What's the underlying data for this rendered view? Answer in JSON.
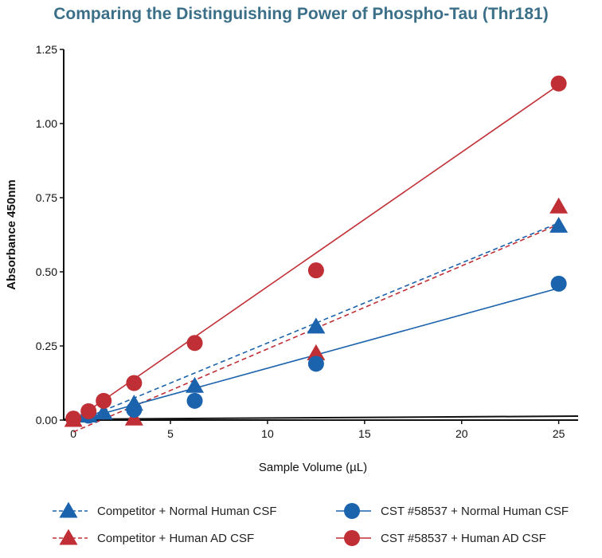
{
  "chart_data": {
    "type": "scatter",
    "title": "Comparing the Distinguishing Power of Phospho-Tau (Thr181)",
    "xlabel": "Sample Volume (µL)",
    "ylabel": "Absorbance 450nm",
    "xlim": [
      -0.5,
      26
    ],
    "ylim": [
      0,
      1.25
    ],
    "xticks": [
      "0",
      "5",
      "10",
      "15",
      "20",
      "25"
    ],
    "yticks": [
      "0.00",
      "0.25",
      "0.50",
      "0.75",
      "1.00",
      "1.25"
    ],
    "grid": false,
    "legend_position": "bottom",
    "series": [
      {
        "name": "Competitor + Normal Human CSF",
        "marker": "triangle",
        "line": "dashed",
        "color": "#1c63ad",
        "x": [
          0.78,
          1.56,
          3.125,
          6.25,
          12.5,
          25
        ],
        "y": [
          0.015,
          0.025,
          0.055,
          0.115,
          0.315,
          0.655
        ],
        "fit": [
          [
            0,
            -0.01
          ],
          [
            25,
            0.665
          ]
        ]
      },
      {
        "name": "Competitor + Human AD CSF",
        "marker": "triangle",
        "line": "dashed",
        "color": "#c02f36",
        "x": [
          0,
          3.125,
          12.5,
          25
        ],
        "y": [
          0.0,
          0.005,
          0.225,
          0.72
        ],
        "fit": [
          [
            0,
            -0.04
          ],
          [
            25,
            0.66
          ]
        ]
      },
      {
        "name": "CST #58537 + Normal Human CSF",
        "marker": "circle",
        "line": "solid",
        "color": "#1c63ad",
        "x": [
          0.78,
          3.125,
          6.25,
          12.5,
          25
        ],
        "y": [
          0.015,
          0.035,
          0.065,
          0.19,
          0.46
        ],
        "fit": [
          [
            0,
            -0.005
          ],
          [
            25,
            0.445
          ]
        ]
      },
      {
        "name": "CST #58537 + Human AD CSF",
        "marker": "circle",
        "line": "solid",
        "color": "#c02f36",
        "x": [
          0,
          0.78,
          1.56,
          3.125,
          6.25,
          12.5,
          25
        ],
        "y": [
          0.005,
          0.03,
          0.065,
          0.125,
          0.26,
          0.505,
          1.135
        ],
        "fit": [
          [
            0,
            -0.003
          ],
          [
            25,
            1.13
          ]
        ]
      }
    ]
  }
}
